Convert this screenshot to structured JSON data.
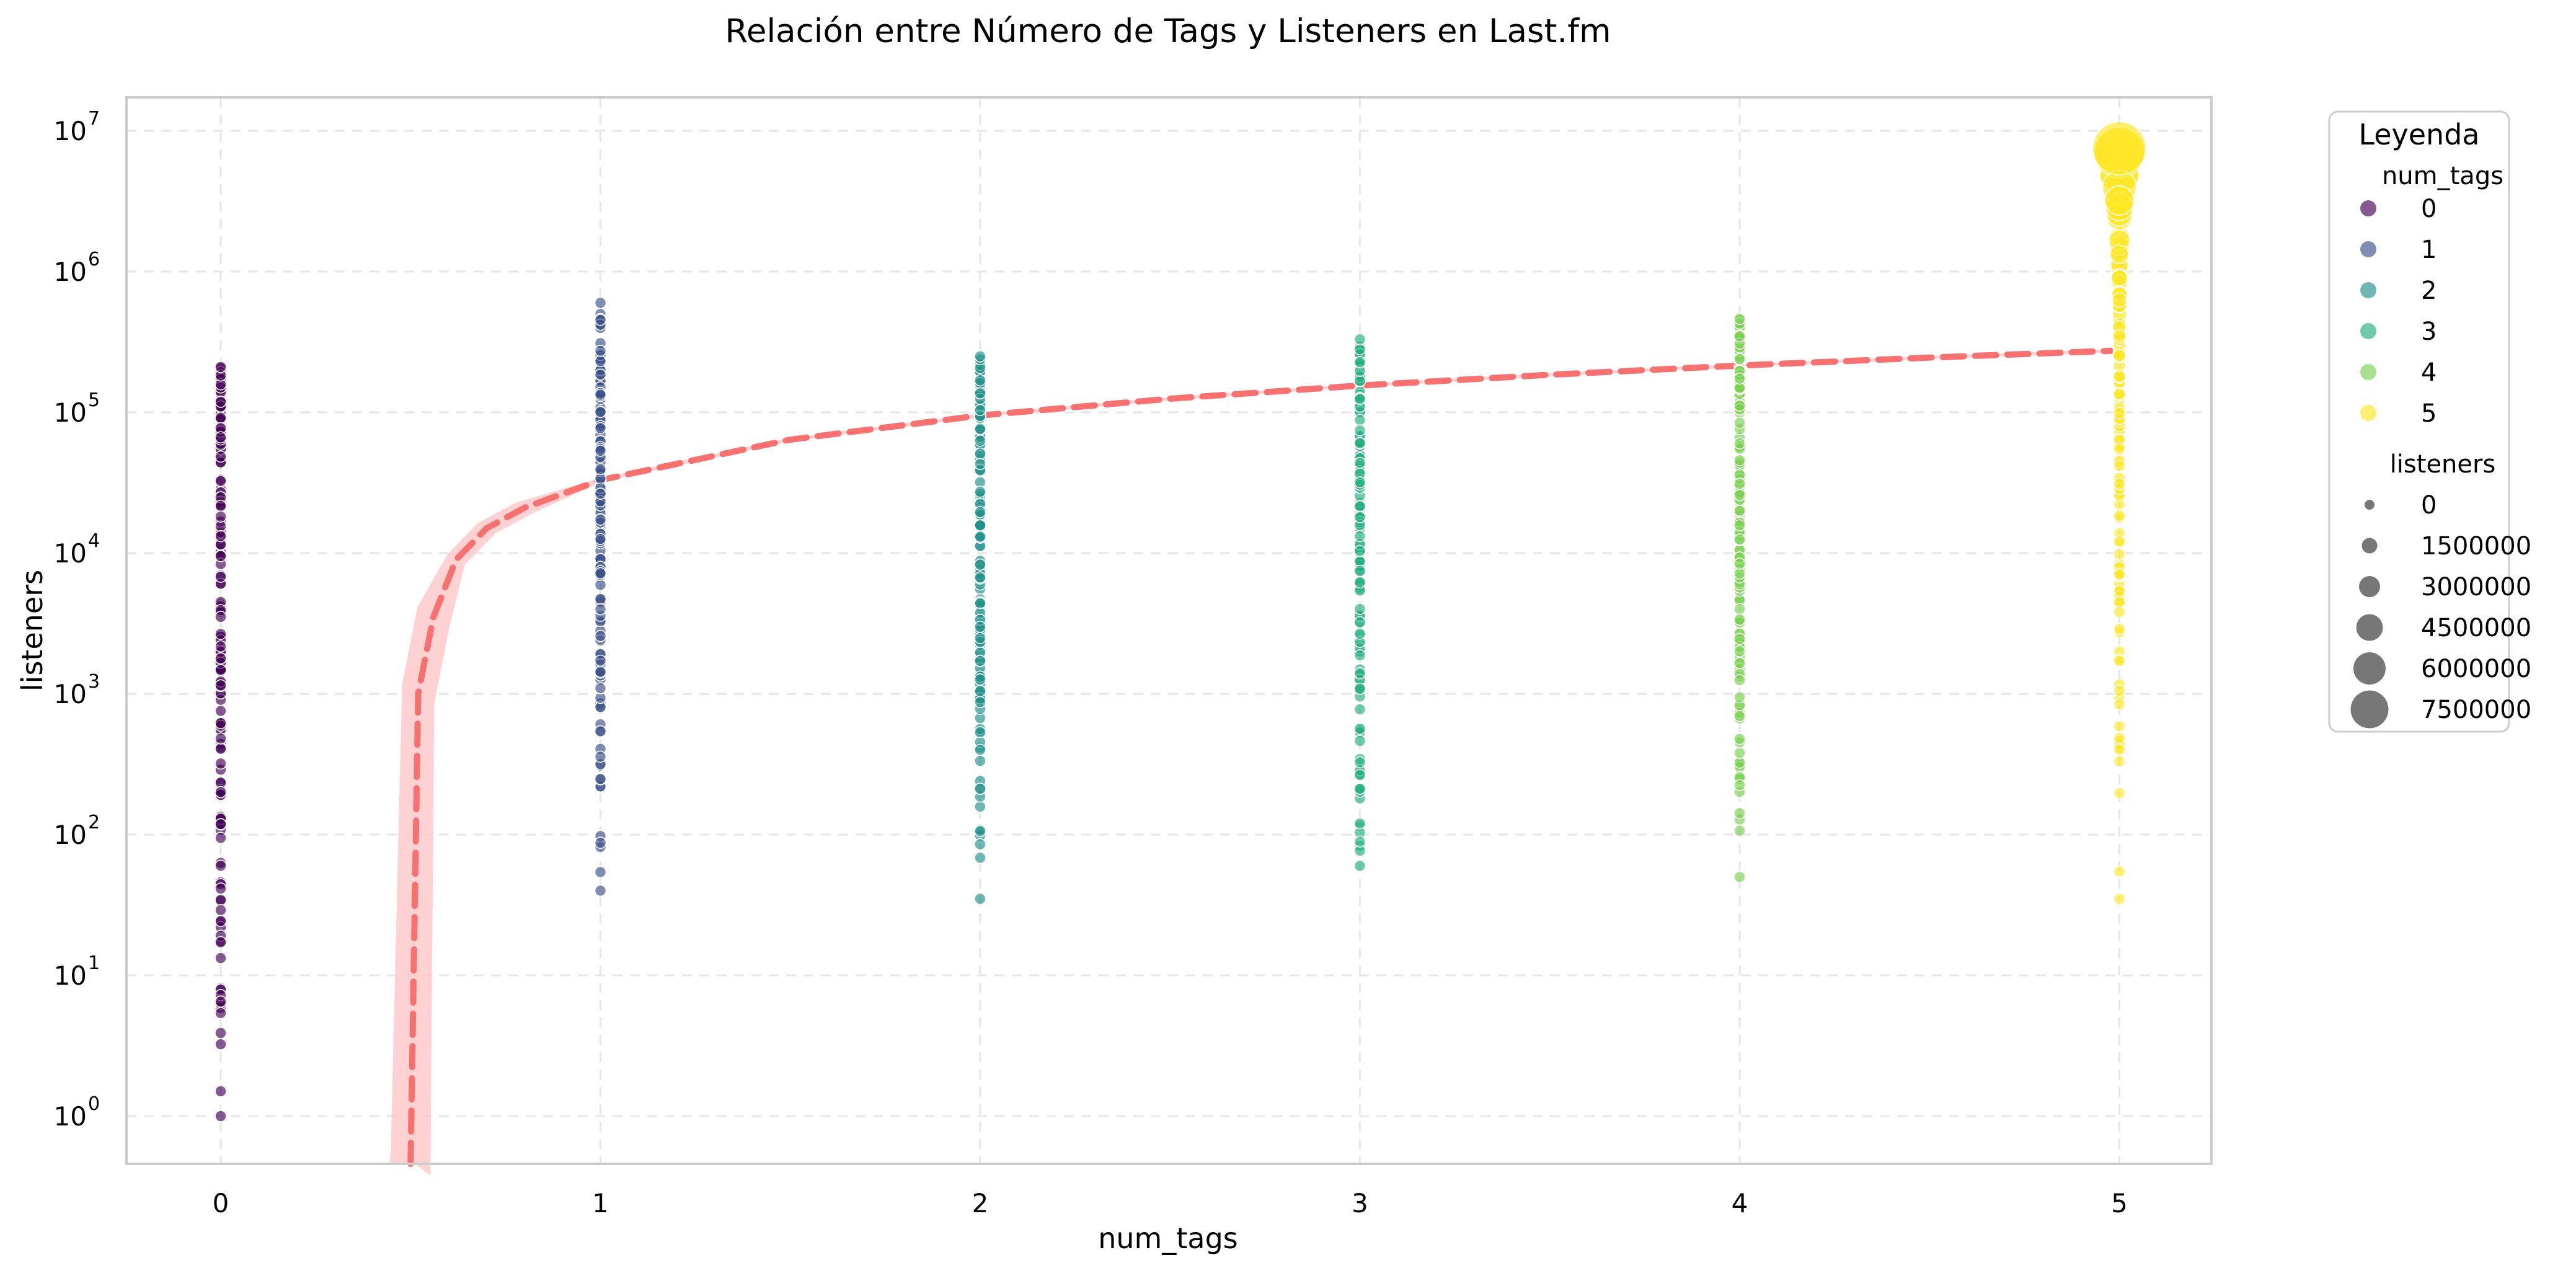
{
  "chart_data": {
    "type": "scatter",
    "title": "Relación entre Número de Tags y Listeners en Last.fm",
    "xlabel": "num_tags",
    "ylabel": "listeners",
    "x_ticks": [
      "0",
      "1",
      "2",
      "3",
      "4",
      "5"
    ],
    "y_scale": "log",
    "y_ticks": [
      {
        "value": 1,
        "base": "10",
        "exp": "0"
      },
      {
        "value": 10,
        "base": "10",
        "exp": "1"
      },
      {
        "value": 100,
        "base": "10",
        "exp": "2"
      },
      {
        "value": 1000,
        "base": "10",
        "exp": "3"
      },
      {
        "value": 10000,
        "base": "10",
        "exp": "4"
      },
      {
        "value": 100000,
        "base": "10",
        "exp": "5"
      },
      {
        "value": 1000000,
        "base": "10",
        "exp": "6"
      },
      {
        "value": 10000000,
        "base": "10",
        "exp": "7"
      }
    ],
    "xlim": [
      -0.25,
      5.25
    ],
    "ylim": [
      0.45,
      17000000
    ],
    "grid": true,
    "legend_placement": "outside-right",
    "series": [
      {
        "num_tags": 0,
        "color": "#440154",
        "min": 1,
        "max": 210000
      },
      {
        "num_tags": 1,
        "color": "#3b528b",
        "min": 40,
        "max": 600000
      },
      {
        "num_tags": 2,
        "color": "#21918c",
        "min": 35,
        "max": 250000
      },
      {
        "num_tags": 3,
        "color": "#27ad81",
        "min": 60,
        "max": 330000
      },
      {
        "num_tags": 4,
        "color": "#7ad151",
        "min": 50,
        "max": 460000
      },
      {
        "num_tags": 5,
        "color": "#fde725",
        "min": 35,
        "max": 7500000
      }
    ],
    "trend_line": {
      "style": "dashed",
      "color": "#f87171",
      "band_color": "#fecaca",
      "x": [
        0.5,
        0.52,
        0.56,
        0.62,
        0.7,
        0.8,
        1.0,
        1.5,
        2.0,
        2.5,
        3.0,
        3.5,
        4.0,
        4.5,
        5.0
      ],
      "y": [
        0.45,
        1000,
        3500,
        9000,
        15000,
        21000,
        33000,
        64000,
        95000,
        125000,
        155000,
        185000,
        215000,
        245000,
        275000
      ]
    },
    "legend": {
      "title": "Leyenda",
      "hue_title": "num_tags",
      "hue_items": [
        {
          "label": "0",
          "color": "#440154"
        },
        {
          "label": "1",
          "color": "#3b528b"
        },
        {
          "label": "2",
          "color": "#21918c"
        },
        {
          "label": "3",
          "color": "#27ad81"
        },
        {
          "label": "4",
          "color": "#7ad151"
        },
        {
          "label": "5",
          "color": "#fde725"
        }
      ],
      "size_title": "listeners",
      "size_items": [
        "0",
        "1500000",
        "3000000",
        "4500000",
        "6000000",
        "7500000"
      ]
    }
  }
}
